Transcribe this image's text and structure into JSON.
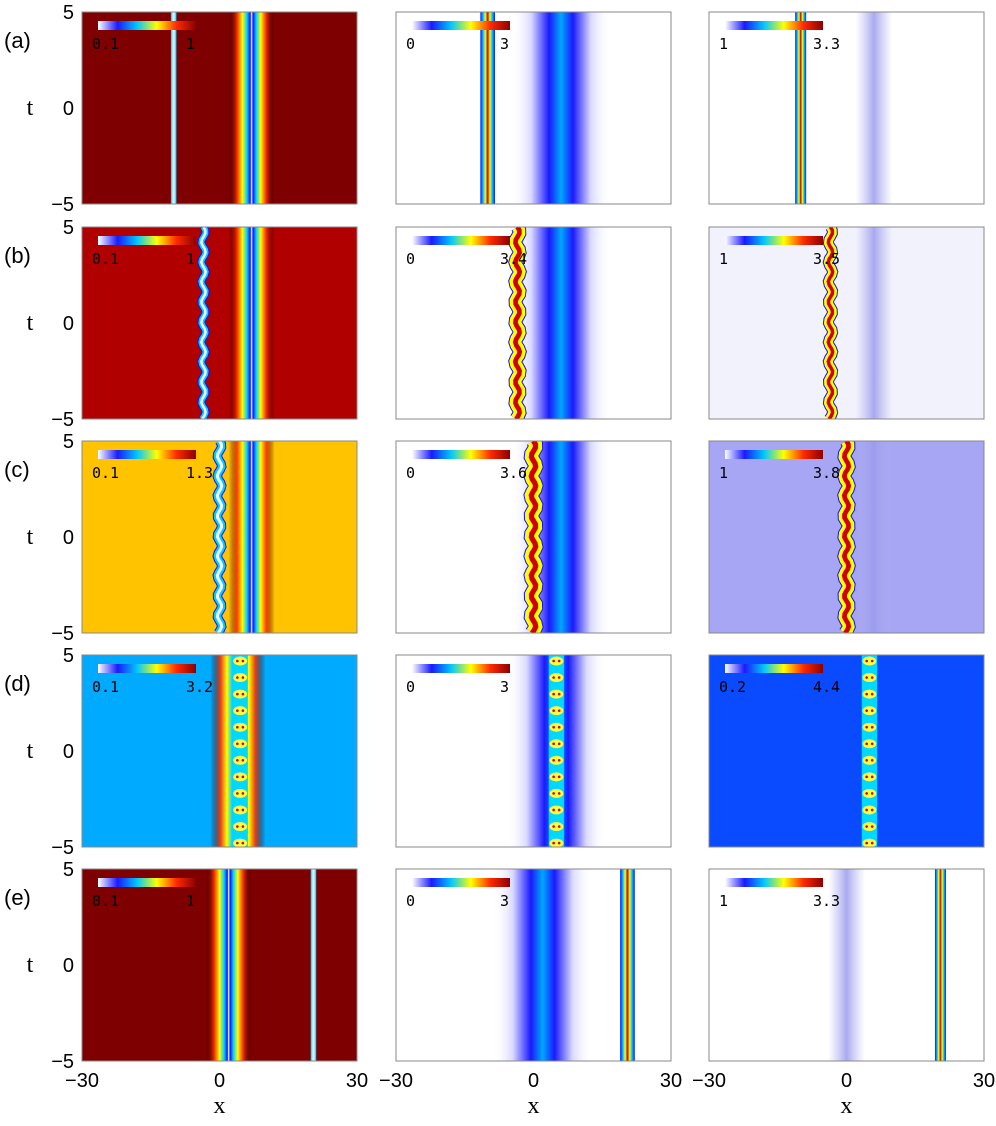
{
  "chart_data": {
    "type": "heatmap",
    "xlabel": "x",
    "ylabel": "t",
    "xlim": [
      -30,
      30
    ],
    "ylim": [
      -5,
      5
    ],
    "xticks": [
      "−30",
      "0",
      "30"
    ],
    "yticks": [
      "5",
      "0",
      "−5"
    ],
    "colormap": [
      "#ffffff",
      "#1a1aff",
      "#00c8ff",
      "#ffff00",
      "#ff2a00",
      "#8b0000"
    ],
    "rows": [
      {
        "label": "(a)",
        "panels": [
          {
            "background": "#7f0000",
            "cbar_min": "0.1",
            "cbar_max": "1",
            "bands": [
              {
                "x": -10,
                "w": 0.6,
                "kind": "thin"
              },
              {
                "x": 7,
                "w": 5,
                "kind": "dip"
              }
            ]
          },
          {
            "background": "#ffffff",
            "cbar_min": "0",
            "cbar_max": "3",
            "bands": [
              {
                "x": 6,
                "w": 12,
                "kind": "wide"
              },
              {
                "x": -10,
                "w": 1.6,
                "kind": "spike"
              }
            ]
          },
          {
            "background": "#ffffff",
            "cbar_min": "1",
            "cbar_max": "3.3",
            "bands": [
              {
                "x": 6,
                "w": 4,
                "kind": "faint"
              },
              {
                "x": -10,
                "w": 1.2,
                "kind": "spike"
              }
            ]
          }
        ]
      },
      {
        "label": "(b)",
        "panels": [
          {
            "background": "#b00000",
            "cbar_min": "0.1",
            "cbar_max": "1",
            "bands": [
              {
                "x": -3.5,
                "w": 0.8,
                "kind": "wavy"
              },
              {
                "x": 7,
                "w": 5,
                "kind": "dip"
              }
            ]
          },
          {
            "background": "#ffffff",
            "cbar_min": "0",
            "cbar_max": "3.4",
            "bands": [
              {
                "x": 6,
                "w": 12,
                "kind": "wide"
              },
              {
                "x": -3.5,
                "w": 1.6,
                "kind": "wavyspike"
              }
            ]
          },
          {
            "background": "#f2f2fc",
            "cbar_min": "1",
            "cbar_max": "3.5",
            "bands": [
              {
                "x": 6,
                "w": 4,
                "kind": "faint"
              },
              {
                "x": -3.5,
                "w": 1.2,
                "kind": "wavyspike"
              }
            ]
          }
        ]
      },
      {
        "label": "(c)",
        "panels": [
          {
            "background": "#ffc300",
            "cbar_min": "0.1",
            "cbar_max": "1.3",
            "bands": [
              {
                "x": 0,
                "w": 1.0,
                "kind": "wavy"
              },
              {
                "x": 7,
                "w": 5,
                "kind": "dip"
              }
            ]
          },
          {
            "background": "#ffffff",
            "cbar_min": "0",
            "cbar_max": "3.6",
            "bands": [
              {
                "x": 6,
                "w": 12,
                "kind": "wide"
              },
              {
                "x": 0,
                "w": 1.8,
                "kind": "wavyspike"
              }
            ]
          },
          {
            "background": "#a6a6f4",
            "cbar_min": "1",
            "cbar_max": "3.8",
            "bands": [
              {
                "x": 6,
                "w": 4,
                "kind": "faint"
              },
              {
                "x": 0,
                "w": 1.6,
                "kind": "wavyspike"
              }
            ]
          }
        ]
      },
      {
        "label": "(d)",
        "panels": [
          {
            "background": "#00aaff",
            "cbar_min": "0.1",
            "cbar_max": "3.2",
            "bands": [
              {
                "x": 4,
                "w": 6,
                "kind": "dip"
              },
              {
                "x": 4.5,
                "w": 1.4,
                "kind": "beads"
              }
            ]
          },
          {
            "background": "#ffffff",
            "cbar_min": "0",
            "cbar_max": "3",
            "bands": [
              {
                "x": 5,
                "w": 12,
                "kind": "wide"
              },
              {
                "x": 5,
                "w": 1.4,
                "kind": "beads"
              }
            ]
          },
          {
            "background": "#0a4bff",
            "cbar_min": "0.2",
            "cbar_max": "4.4",
            "bands": [
              {
                "x": 5,
                "w": 1.4,
                "kind": "beads"
              }
            ]
          }
        ]
      },
      {
        "label": "(e)",
        "panels": [
          {
            "background": "#7f0000",
            "cbar_min": "0.1",
            "cbar_max": "1",
            "bands": [
              {
                "x": 2,
                "w": 5,
                "kind": "dip"
              },
              {
                "x": 20.5,
                "w": 0.6,
                "kind": "thin"
              }
            ]
          },
          {
            "background": "#ffffff",
            "cbar_min": "0",
            "cbar_max": "3",
            "bands": [
              {
                "x": 2,
                "w": 12,
                "kind": "wide"
              },
              {
                "x": 20.5,
                "w": 1.6,
                "kind": "spike"
              }
            ]
          },
          {
            "background": "#ffffff",
            "cbar_min": "1",
            "cbar_max": "3.3",
            "bands": [
              {
                "x": 0,
                "w": 4,
                "kind": "faint"
              },
              {
                "x": 20.5,
                "w": 1.2,
                "kind": "spike"
              }
            ]
          }
        ]
      }
    ]
  }
}
